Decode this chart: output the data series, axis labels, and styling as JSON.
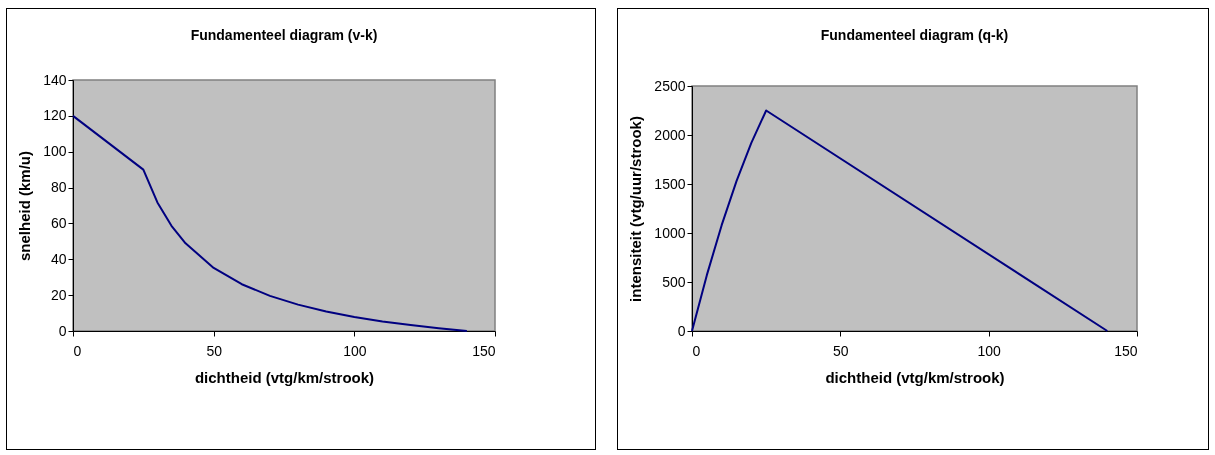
{
  "chart_data": [
    {
      "type": "line",
      "title": "Fundamenteel diagram (v-k)",
      "xlabel": "dichtheid (vtg/km/strook)",
      "ylabel": "snelheid (km/u)",
      "xlim": [
        0,
        150
      ],
      "xticks": [
        0,
        50,
        100,
        150
      ],
      "ylim": [
        0,
        140
      ],
      "yticks": [
        0,
        20,
        40,
        60,
        80,
        100,
        120,
        140
      ],
      "grid": false,
      "series": [
        {
          "color": "#000080",
          "x": [
            0,
            25,
            30,
            35,
            40,
            50,
            60,
            70,
            80,
            90,
            100,
            110,
            120,
            130,
            140
          ],
          "values": [
            120,
            90,
            71.7,
            58.7,
            48.9,
            35.2,
            26.1,
            19.6,
            14.7,
            10.9,
            7.8,
            5.3,
            3.3,
            1.5,
            0
          ]
        }
      ]
    },
    {
      "type": "line",
      "title": "Fundamenteel diagram (q-k)",
      "xlabel": "dichtheid (vtg/km/strook)",
      "ylabel": "intensiteit (vtg/uur/strook)",
      "xlim": [
        0,
        150
      ],
      "xticks": [
        0,
        50,
        100,
        150
      ],
      "ylim": [
        0,
        2500
      ],
      "yticks": [
        0,
        500,
        1000,
        1500,
        2000,
        2500
      ],
      "grid": false,
      "series": [
        {
          "color": "#000080",
          "x": [
            0,
            5,
            10,
            15,
            20,
            25,
            140
          ],
          "values": [
            0,
            570,
            1080,
            1530,
            1920,
            2250,
            0
          ]
        }
      ]
    }
  ]
}
